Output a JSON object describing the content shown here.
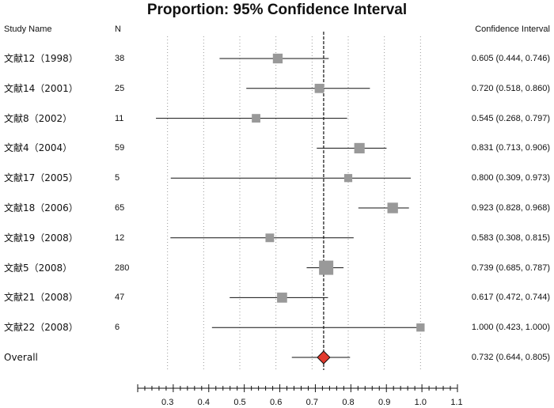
{
  "chart_data": {
    "type": "forest",
    "title": "Proportion: 95% Confidence Interval",
    "columns": {
      "study": "Study Name",
      "n": "N",
      "ci": "Confidence Interval"
    },
    "xlim": [
      0.2,
      1.1
    ],
    "x_ticks": [
      "0.3",
      "0.4",
      "0.5",
      "0.6",
      "0.7",
      "0.8",
      "0.9",
      "1.0",
      "1.1"
    ],
    "reference_line": 0.732,
    "studies": [
      {
        "name": "文献12（1998）",
        "n": "38",
        "estimate": 0.605,
        "lower": 0.444,
        "upper": 0.746,
        "ci_text": "0.605 (0.444, 0.746)"
      },
      {
        "name": "文献14（2001）",
        "n": "25",
        "estimate": 0.72,
        "lower": 0.518,
        "upper": 0.86,
        "ci_text": "0.720 (0.518, 0.860)"
      },
      {
        "name": "文献8（2002）",
        "n": "11",
        "estimate": 0.545,
        "lower": 0.268,
        "upper": 0.797,
        "ci_text": "0.545 (0.268, 0.797)"
      },
      {
        "name": "文献4（2004）",
        "n": "59",
        "estimate": 0.831,
        "lower": 0.713,
        "upper": 0.906,
        "ci_text": "0.831 (0.713, 0.906)"
      },
      {
        "name": "文献17（2005）",
        "n": "5",
        "estimate": 0.8,
        "lower": 0.309,
        "upper": 0.973,
        "ci_text": "0.800 (0.309, 0.973)"
      },
      {
        "name": "文献18（2006）",
        "n": "65",
        "estimate": 0.923,
        "lower": 0.828,
        "upper": 0.968,
        "ci_text": "0.923 (0.828, 0.968)"
      },
      {
        "name": "文献19（2008）",
        "n": "12",
        "estimate": 0.583,
        "lower": 0.308,
        "upper": 0.815,
        "ci_text": "0.583 (0.308, 0.815)"
      },
      {
        "name": "文献5（2008）",
        "n": "280",
        "estimate": 0.739,
        "lower": 0.685,
        "upper": 0.787,
        "ci_text": "0.739 (0.685, 0.787)"
      },
      {
        "name": "文献21（2008）",
        "n": "47",
        "estimate": 0.617,
        "lower": 0.472,
        "upper": 0.744,
        "ci_text": "0.617 (0.472, 0.744)"
      },
      {
        "name": "文献22（2008）",
        "n": "6",
        "estimate": 1.0,
        "lower": 0.423,
        "upper": 1.0,
        "ci_text": "1.000 (0.423, 1.000)"
      }
    ],
    "overall": {
      "name": "Overall",
      "estimate": 0.732,
      "lower": 0.644,
      "upper": 0.805,
      "ci_text": "0.732 (0.644, 0.805)"
    },
    "colors": {
      "square": "#999999",
      "diamond": "#e23a2e",
      "line": "#111111",
      "grid": "#9a9a9a"
    }
  }
}
